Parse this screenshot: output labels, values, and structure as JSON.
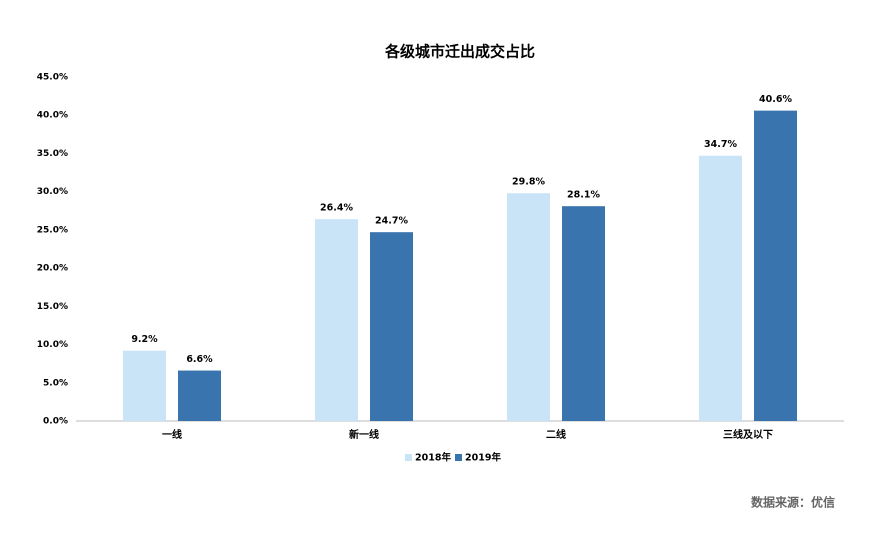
{
  "chart_data": {
    "type": "bar",
    "title": "各级城市迁出成交占比",
    "categories": [
      "一线",
      "新一线",
      "二线",
      "三线及以下"
    ],
    "series": [
      {
        "name": "2018年",
        "color": "#c9e3f7",
        "values": [
          9.2,
          26.4,
          29.8,
          34.7
        ],
        "value_labels": [
          "9.2%",
          "26.4%",
          "29.8%",
          "34.7%"
        ]
      },
      {
        "name": "2019年",
        "color": "#3a74ae",
        "values": [
          6.6,
          24.7,
          28.1,
          40.6
        ],
        "value_labels": [
          "6.6%",
          "24.7%",
          "28.1%",
          "40.6%"
        ]
      }
    ],
    "ylim": [
      0,
      45
    ],
    "yticks": [
      {
        "value": 0,
        "label": "0.0%"
      },
      {
        "value": 5,
        "label": "5.0%"
      },
      {
        "value": 10,
        "label": "10.0%"
      },
      {
        "value": 15,
        "label": "15.0%"
      },
      {
        "value": 20,
        "label": "20.0%"
      },
      {
        "value": 25,
        "label": "25.0%"
      },
      {
        "value": 30,
        "label": "30.0%"
      },
      {
        "value": 35,
        "label": "35.0%"
      },
      {
        "value": 40,
        "label": "40.0%"
      },
      {
        "value": 45,
        "label": "45.0%"
      }
    ],
    "grid": false,
    "legend": "bottom",
    "source": "数据来源：优信"
  }
}
